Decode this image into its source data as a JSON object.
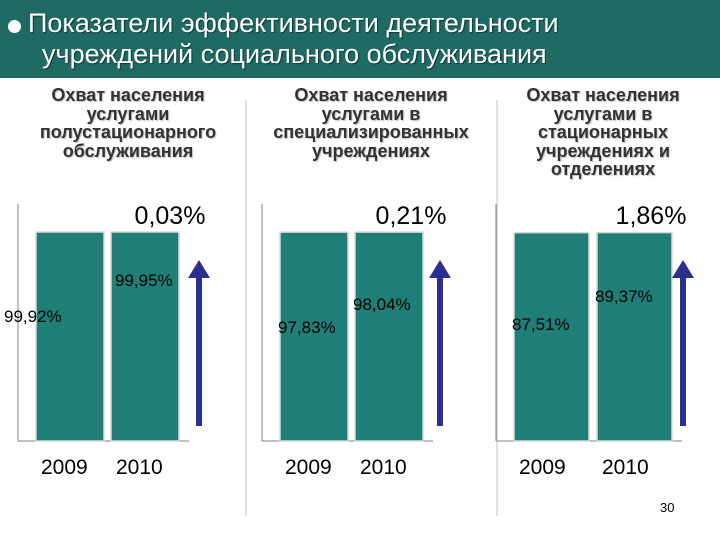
{
  "header": {
    "bullet_icon": "white-dot",
    "title_line1": "Показатели эффективности деятельности",
    "title_line2": "учреждений социального обслуживания"
  },
  "columns": [
    {
      "label_lines": [
        "Охват населения",
        "услугами",
        "полустационарного",
        "обслуживания"
      ]
    },
    {
      "label_lines": [
        "Охват населения",
        "услугами в",
        "специализированных",
        "учреждениях"
      ]
    },
    {
      "label_lines": [
        "Охват населения",
        "услугами  в",
        "стационарных",
        "учреждениях и",
        "отделениях"
      ]
    }
  ],
  "chart_data": [
    {
      "type": "bar",
      "categories": [
        "2009",
        "2010"
      ],
      "values": [
        99.92,
        99.95
      ],
      "data_labels": [
        "99,92%",
        "99,95%"
      ],
      "growth_label": "0,03%",
      "xlabel": "2009  2010",
      "bar_color": "#1f7f77",
      "arrow_color": "#2b2f8f",
      "grid": false
    },
    {
      "type": "bar",
      "categories": [
        "2009",
        "2010"
      ],
      "values": [
        97.83,
        98.04
      ],
      "data_labels": [
        "97,83%",
        "98,04%"
      ],
      "growth_label": "0,21%",
      "xlabel": "2009  2010",
      "bar_color": "#1f7f77",
      "arrow_color": "#2b2f8f",
      "grid": false
    },
    {
      "type": "bar",
      "categories": [
        "2009",
        "2010"
      ],
      "values": [
        87.51,
        89.37
      ],
      "data_labels": [
        "87,51%",
        "89,37%"
      ],
      "growth_label": "1,86%",
      "xlabel": "2009  2010",
      "bar_color": "#1f7f77",
      "arrow_color": "#2b2f8f",
      "grid": false
    }
  ],
  "page_number": "30"
}
